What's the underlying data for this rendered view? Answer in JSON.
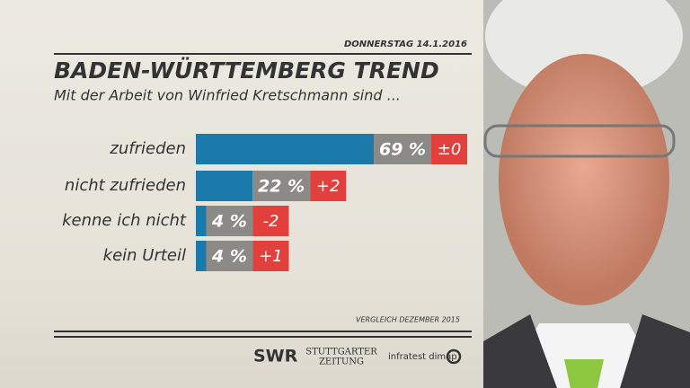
{
  "date": "DONNERSTAG 14.1.2016",
  "chart_data": {
    "type": "hbar",
    "title": "BADEN-WÜRTTEMBERG TREND",
    "subtitle": "Mit der Arbeit von Winfried Kretschmann sind ...",
    "categories": [
      "zufrieden",
      "nicht zufrieden",
      "kenne ich nicht",
      "kein Urteil"
    ],
    "values": [
      69,
      22,
      4,
      4
    ],
    "value_labels": [
      "69 %",
      "22 %",
      "4 %",
      "4 %"
    ],
    "changes": [
      0,
      2,
      -2,
      1
    ],
    "change_labels": [
      "±0",
      "+2",
      "-2",
      "+1"
    ],
    "color": "#1b7aaa",
    "note": "VERGLEICH DEZEMBER 2015"
  },
  "footer": {
    "logos": [
      "SWR",
      "STUTTGARTER",
      "ZEITUNG",
      "infratest dimap"
    ]
  }
}
